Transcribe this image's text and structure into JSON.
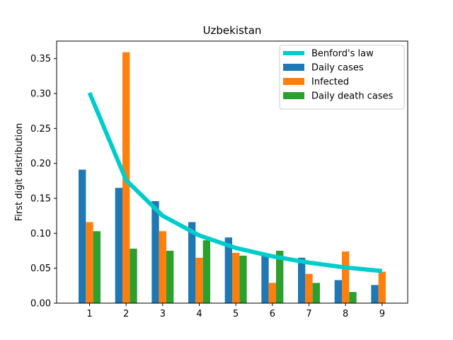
{
  "chart_data": {
    "type": "bar",
    "title": "Uzbekistan",
    "xlabel": "",
    "ylabel": "First digit distribution",
    "categories": [
      "1",
      "2",
      "3",
      "4",
      "5",
      "6",
      "7",
      "8",
      "9"
    ],
    "xlim": [
      0.1,
      9.7
    ],
    "ylim": [
      0,
      0.375
    ],
    "yticks": [
      "0.00",
      "0.05",
      "0.10",
      "0.15",
      "0.20",
      "0.25",
      "0.30",
      "0.35"
    ],
    "ytick_values": [
      0,
      0.05,
      0.1,
      0.15,
      0.2,
      0.25,
      0.3,
      0.35
    ],
    "legend_position": "top-right",
    "line": {
      "name": "Benford's law",
      "color": "#00cccc",
      "values": [
        0.301,
        0.176,
        0.125,
        0.097,
        0.079,
        0.067,
        0.058,
        0.051,
        0.046
      ]
    },
    "series": [
      {
        "name": "Daily cases",
        "color": "#1f77b4",
        "values": [
          0.191,
          0.165,
          0.146,
          0.116,
          0.094,
          0.068,
          0.065,
          0.033,
          0.026
        ]
      },
      {
        "name": "Infected",
        "color": "#ff7f0e",
        "values": [
          0.116,
          0.359,
          0.103,
          0.065,
          0.072,
          0.029,
          0.042,
          0.074,
          0.045
        ]
      },
      {
        "name": "Daily death cases",
        "color": "#2ca02c",
        "values": [
          0.103,
          0.078,
          0.075,
          0.09,
          0.068,
          0.075,
          0.029,
          0.016,
          0.0
        ]
      }
    ]
  }
}
